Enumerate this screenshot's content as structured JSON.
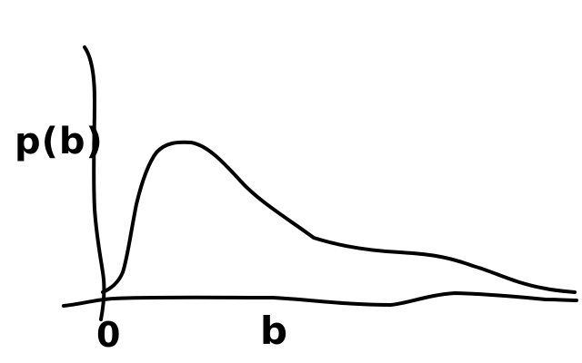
{
  "diagram": {
    "ylabel": "p(b)",
    "xlabel_origin": "0",
    "xlabel_variable": "b",
    "ink_color": "#000000"
  }
}
